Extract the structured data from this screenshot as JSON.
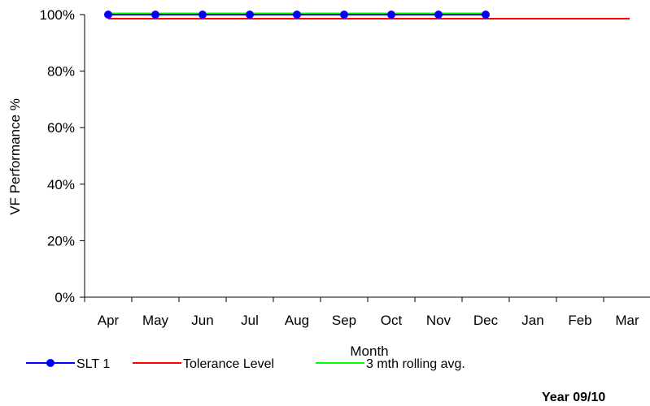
{
  "chart_data": {
    "type": "line",
    "title": "",
    "xlabel": "Month",
    "ylabel": "VF Performance %",
    "categories": [
      "Apr",
      "May",
      "Jun",
      "Jul",
      "Aug",
      "Sep",
      "Oct",
      "Nov",
      "Dec",
      "Jan",
      "Feb",
      "Mar"
    ],
    "y_tick_labels": [
      "0%",
      "20%",
      "40%",
      "60%",
      "80%",
      "100%"
    ],
    "ylim": [
      0,
      100
    ],
    "grid": false,
    "legend_position": "bottom",
    "series": [
      {
        "name": "SLT 1",
        "color": "#0000ff",
        "marker": "circle",
        "values": [
          100,
          100,
          100,
          100,
          100,
          100,
          100,
          100,
          100,
          null,
          null,
          null
        ]
      },
      {
        "name": "Tolerance Level",
        "color": "#ff0000",
        "marker": "none",
        "values": [
          99,
          99,
          99,
          99,
          99,
          99,
          99,
          99,
          99,
          99,
          99,
          99
        ]
      },
      {
        "name": "3 mth rolling avg.",
        "color": "#00ff00",
        "marker": "none",
        "values": [
          100,
          100,
          100,
          100,
          100,
          100,
          100,
          100,
          100,
          null,
          null,
          null
        ]
      }
    ],
    "annotation": "Year 09/10"
  }
}
